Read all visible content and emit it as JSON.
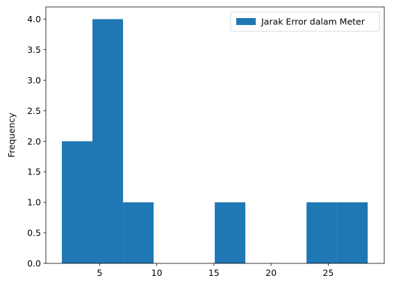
{
  "chart_data": {
    "type": "bar",
    "title": "",
    "xlabel": "",
    "ylabel": "Frequency",
    "xlim": [
      0.3,
      29.9
    ],
    "ylim": [
      0,
      4.2
    ],
    "bins": [
      {
        "x0": 1.7,
        "x1": 4.375,
        "count": 2
      },
      {
        "x0": 4.375,
        "x1": 7.05,
        "count": 4
      },
      {
        "x0": 7.05,
        "x1": 9.725,
        "count": 1
      },
      {
        "x0": 9.725,
        "x1": 12.4,
        "count": 0
      },
      {
        "x0": 12.4,
        "x1": 15.075,
        "count": 0
      },
      {
        "x0": 15.075,
        "x1": 17.75,
        "count": 1
      },
      {
        "x0": 17.75,
        "x1": 20.425,
        "count": 0
      },
      {
        "x0": 20.425,
        "x1": 23.1,
        "count": 0
      },
      {
        "x0": 23.1,
        "x1": 25.775,
        "count": 1
      },
      {
        "x0": 25.775,
        "x1": 28.45,
        "count": 1
      }
    ],
    "x_ticks": [
      5,
      10,
      15,
      20,
      25
    ],
    "x_tick_labels": [
      "5",
      "10",
      "15",
      "20",
      "25"
    ],
    "y_ticks": [
      0.0,
      0.5,
      1.0,
      1.5,
      2.0,
      2.5,
      3.0,
      3.5,
      4.0
    ],
    "y_tick_labels": [
      "0.0",
      "0.5",
      "1.0",
      "1.5",
      "2.0",
      "2.5",
      "3.0",
      "3.5",
      "4.0"
    ],
    "series": [
      {
        "name": "Jarak Error dalam Meter",
        "color": "#1f77b4"
      }
    ],
    "legend_position": "top-right",
    "grid": false
  }
}
